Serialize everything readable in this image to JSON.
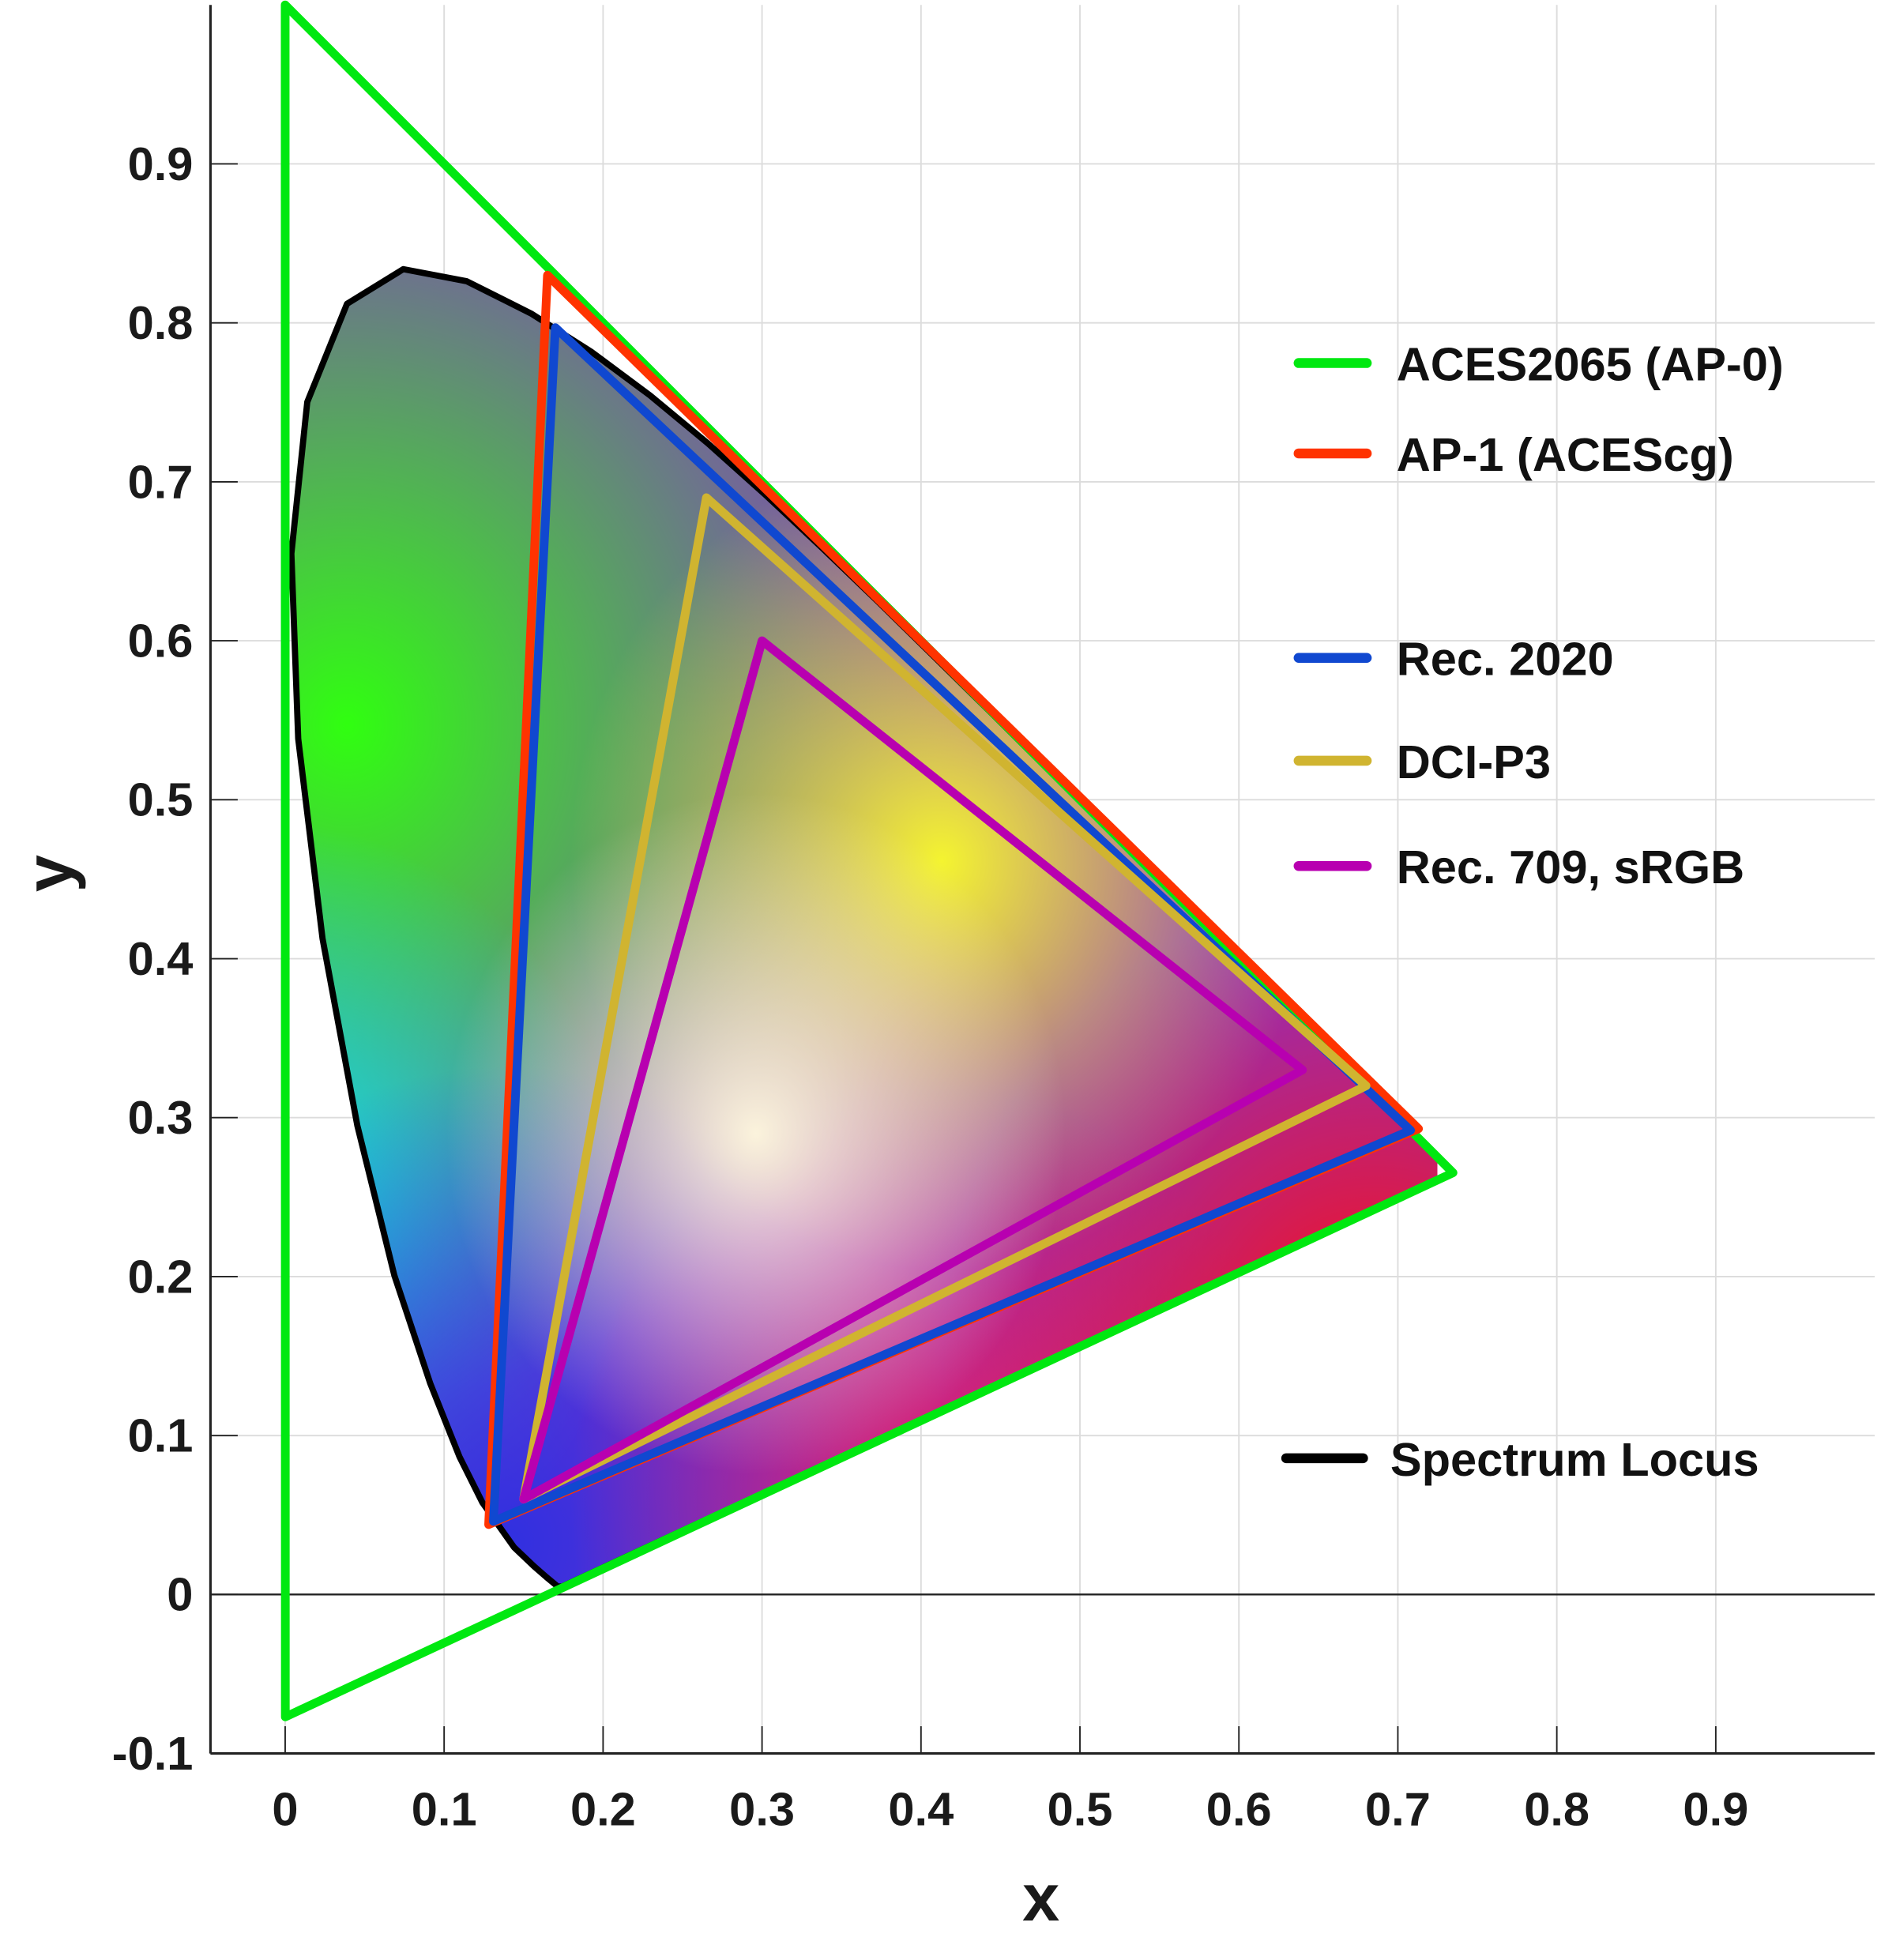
{
  "chart_data": {
    "type": "line",
    "xlabel": "x",
    "ylabel": "y",
    "xlim": [
      -0.047,
      1.0
    ],
    "ylim": [
      -0.1,
      1.0
    ],
    "grid": true,
    "legend_placement": "right",
    "xticks": [
      "0",
      "0.1",
      "0.2",
      "0.3",
      "0.4",
      "0.5",
      "0.6",
      "0.7",
      "0.8",
      "0.9"
    ],
    "yticks": [
      "-0.1",
      "0",
      "0.1",
      "0.2",
      "0.3",
      "0.4",
      "0.5",
      "0.6",
      "0.7",
      "0.8",
      "0.9"
    ],
    "series": [
      {
        "name": "ACES2065 (AP-0)",
        "color": "#00e810",
        "points": [
          [
            0.7347,
            0.2653
          ],
          [
            0.0,
            1.0
          ],
          [
            0.0001,
            -0.077
          ]
        ]
      },
      {
        "name": "AP-1 (ACEScg)",
        "color": "#ff3300",
        "points": [
          [
            0.713,
            0.293
          ],
          [
            0.165,
            0.83
          ],
          [
            0.128,
            0.044
          ]
        ]
      },
      {
        "name": "Rec. 2020",
        "color": "#1048d0",
        "points": [
          [
            0.708,
            0.292
          ],
          [
            0.17,
            0.797
          ],
          [
            0.131,
            0.046
          ]
        ]
      },
      {
        "name": "DCI-P3",
        "color": "#d0b430",
        "points": [
          [
            0.68,
            0.32
          ],
          [
            0.265,
            0.69
          ],
          [
            0.15,
            0.06
          ]
        ]
      },
      {
        "name": "Rec. 709, sRGB",
        "color": "#b800b0",
        "points": [
          [
            0.64,
            0.33
          ],
          [
            0.3,
            0.6
          ],
          [
            0.15,
            0.06
          ]
        ]
      }
    ],
    "spectrum_locus": {
      "name": "Spectrum Locus",
      "color": "#000000",
      "points": [
        [
          0.1741,
          0.005
        ],
        [
          0.1714,
          0.0051
        ],
        [
          0.1644,
          0.0109
        ],
        [
          0.1566,
          0.0177
        ],
        [
          0.144,
          0.0297
        ],
        [
          0.1241,
          0.0578
        ],
        [
          0.1096,
          0.0868
        ],
        [
          0.0913,
          0.1327
        ],
        [
          0.0687,
          0.2007
        ],
        [
          0.0454,
          0.295
        ],
        [
          0.0235,
          0.4127
        ],
        [
          0.0082,
          0.5384
        ],
        [
          0.0039,
          0.6548
        ],
        [
          0.0139,
          0.7502
        ],
        [
          0.0389,
          0.812
        ],
        [
          0.0743,
          0.8338
        ],
        [
          0.1142,
          0.8262
        ],
        [
          0.1547,
          0.8059
        ],
        [
          0.1929,
          0.7816
        ],
        [
          0.2296,
          0.7543
        ],
        [
          0.2658,
          0.7243
        ],
        [
          0.3016,
          0.6923
        ],
        [
          0.3373,
          0.6589
        ],
        [
          0.3731,
          0.6245
        ],
        [
          0.4087,
          0.5896
        ],
        [
          0.4441,
          0.5547
        ],
        [
          0.4788,
          0.5202
        ],
        [
          0.5125,
          0.4866
        ],
        [
          0.5448,
          0.4544
        ],
        [
          0.5752,
          0.4242
        ],
        [
          0.6029,
          0.3965
        ],
        [
          0.627,
          0.3725
        ],
        [
          0.6658,
          0.334
        ],
        [
          0.6915,
          0.3083
        ],
        [
          0.7079,
          0.292
        ],
        [
          0.719,
          0.2809
        ],
        [
          0.726,
          0.274
        ],
        [
          0.7347,
          0.2653
        ]
      ]
    }
  }
}
